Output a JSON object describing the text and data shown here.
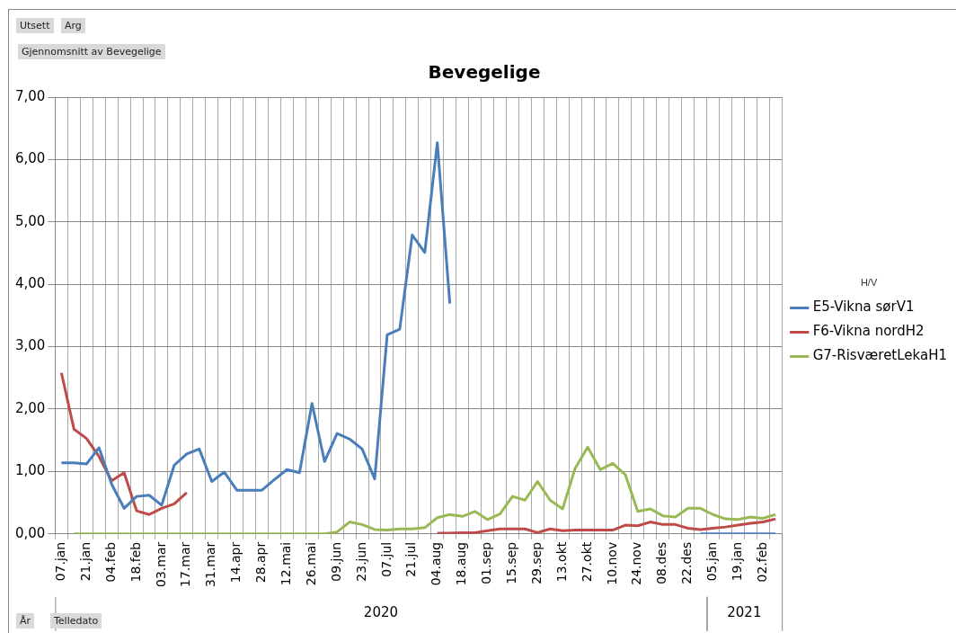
{
  "chart_data": {
    "type": "line",
    "title": "Bevegelige",
    "legend_title": "H/V",
    "legend": "right",
    "grid": true,
    "marker": "none",
    "line_style": "solid",
    "categories": [
      "07.jan",
      null,
      "21.jan",
      null,
      "04.feb",
      null,
      "18.feb",
      null,
      "03.mar",
      null,
      "17.mar",
      null,
      "31.mar",
      null,
      "14.apr",
      null,
      "28.apr",
      null,
      "12.mai",
      null,
      "26.mai",
      null,
      "09.jun",
      null,
      "23.jun",
      null,
      "07.jul",
      null,
      "21.jul",
      null,
      "04.aug",
      null,
      "18.aug",
      null,
      "01.sep",
      null,
      "15.sep",
      null,
      "29.sep",
      null,
      "13.okt",
      null,
      "27.okt",
      null,
      "10.nov",
      null,
      "24.nov",
      null,
      "08.des",
      null,
      "22.des",
      null,
      "05.jan",
      null,
      "19.jan",
      null,
      "02.feb",
      null
    ],
    "ylim": [
      0,
      7
    ],
    "yticks": [
      {
        "value": 0,
        "label": "0,00"
      },
      {
        "value": 1,
        "label": "1,00"
      },
      {
        "value": 2,
        "label": "2,00"
      },
      {
        "value": 3,
        "label": "3,00"
      },
      {
        "value": 4,
        "label": "4,00"
      },
      {
        "value": 5,
        "label": "5,00"
      },
      {
        "value": 6,
        "label": "6,00"
      },
      {
        "value": 7,
        "label": "7,00"
      }
    ],
    "series": [
      {
        "name": "E5-Vikna sørV1",
        "color": "#4a7ebb",
        "values": [
          1.14,
          1.14,
          1.12,
          1.38,
          0.8,
          0.41,
          0.6,
          0.62,
          0.46,
          1.1,
          1.28,
          1.36,
          0.84,
          0.99,
          0.7,
          0.7,
          0.7,
          0.87,
          1.03,
          0.98,
          2.09,
          1.16,
          1.61,
          1.52,
          1.36,
          0.88,
          3.19,
          3.28,
          4.79,
          4.51,
          6.27,
          3.69,
          null,
          null,
          null,
          null,
          null,
          null,
          null,
          null,
          null,
          null,
          null,
          null,
          null,
          null,
          null,
          null,
          null,
          null,
          null,
          0,
          0,
          0,
          0,
          0,
          0,
          0
        ]
      },
      {
        "name": "F6-Vikna nordH2",
        "color": "#be4b48",
        "values": [
          2.58,
          1.68,
          1.53,
          1.24,
          0.85,
          0.98,
          0.37,
          0.31,
          0.41,
          0.48,
          0.66,
          null,
          null,
          null,
          null,
          null,
          null,
          null,
          null,
          null,
          null,
          null,
          null,
          null,
          null,
          null,
          null,
          null,
          null,
          null,
          0.01,
          0.01,
          0.02,
          0.02,
          0.05,
          0.08,
          0.08,
          0.08,
          0.02,
          0.08,
          0.05,
          0.06,
          0.06,
          0.06,
          0.06,
          0.14,
          0.13,
          0.19,
          0.15,
          0.15,
          0.09,
          0.07,
          0.09,
          0.11,
          0.14,
          0.17,
          0.19,
          0.24
        ]
      },
      {
        "name": "G7-RisværetLekaH1",
        "color": "#98b954",
        "values": [
          null,
          0,
          0,
          0,
          0,
          0,
          0,
          0,
          0,
          0,
          0,
          0,
          0,
          0,
          0,
          0,
          0,
          0,
          0,
          0,
          0,
          0,
          0.03,
          0.19,
          0.15,
          0.07,
          0.06,
          0.08,
          0.08,
          0.1,
          0.26,
          0.31,
          0.28,
          0.36,
          0.23,
          0.32,
          0.6,
          0.54,
          0.84,
          0.54,
          0.4,
          1.05,
          1.39,
          1.03,
          1.13,
          0.95,
          0.36,
          0.4,
          0.29,
          0.27,
          0.41,
          0.41,
          0.31,
          0.24,
          0.23,
          0.27,
          0.25,
          0.31
        ]
      }
    ],
    "annotations": [
      "Utsett",
      "Arg",
      "Gjennomsnitt av Bevegelige",
      "År",
      "Telledato",
      "2020",
      "2021"
    ]
  }
}
